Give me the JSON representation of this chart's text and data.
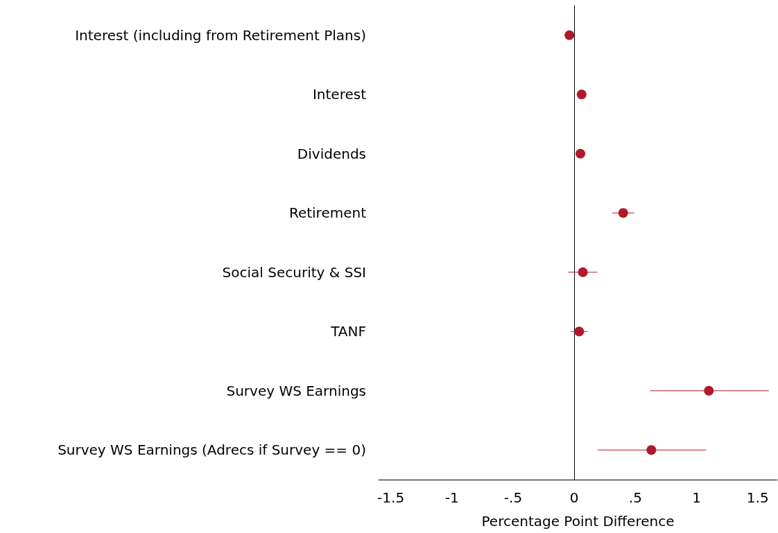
{
  "chart_data": {
    "type": "scatter",
    "orientation": "horizontal",
    "xlabel": "Percentage Point Difference",
    "categories": [
      "Interest (including from Retirement Plans)",
      "Interest",
      "Dividends",
      "Retirement",
      "Social Security & SSI",
      "TANF",
      "Survey WS Earnings",
      "Survey WS Earnings (Adrecs if Survey == 0)"
    ],
    "values": [
      -0.04,
      0.06,
      0.05,
      0.4,
      0.07,
      0.04,
      1.1,
      0.63
    ],
    "errors": [
      [
        -0.08,
        0.0
      ],
      [
        0.02,
        0.1
      ],
      [
        0.03,
        0.08
      ],
      [
        0.31,
        0.49
      ],
      [
        -0.05,
        0.19
      ],
      [
        -0.03,
        0.11
      ],
      [
        0.62,
        1.59
      ],
      [
        0.19,
        1.08
      ]
    ],
    "color": "#b2182b",
    "marker": "circle",
    "xlim": [
      -1.6,
      1.66
    ],
    "xticks": [
      -1.5,
      -1,
      {
        "value": -0.5,
        "label": "-.5"
      },
      0,
      {
        "value": 0.5,
        "label": ".5"
      },
      1,
      1.5
    ],
    "ref_lines": [
      {
        "axis": "x",
        "value": 0,
        "color": "#000000"
      }
    ],
    "grid": false
  }
}
